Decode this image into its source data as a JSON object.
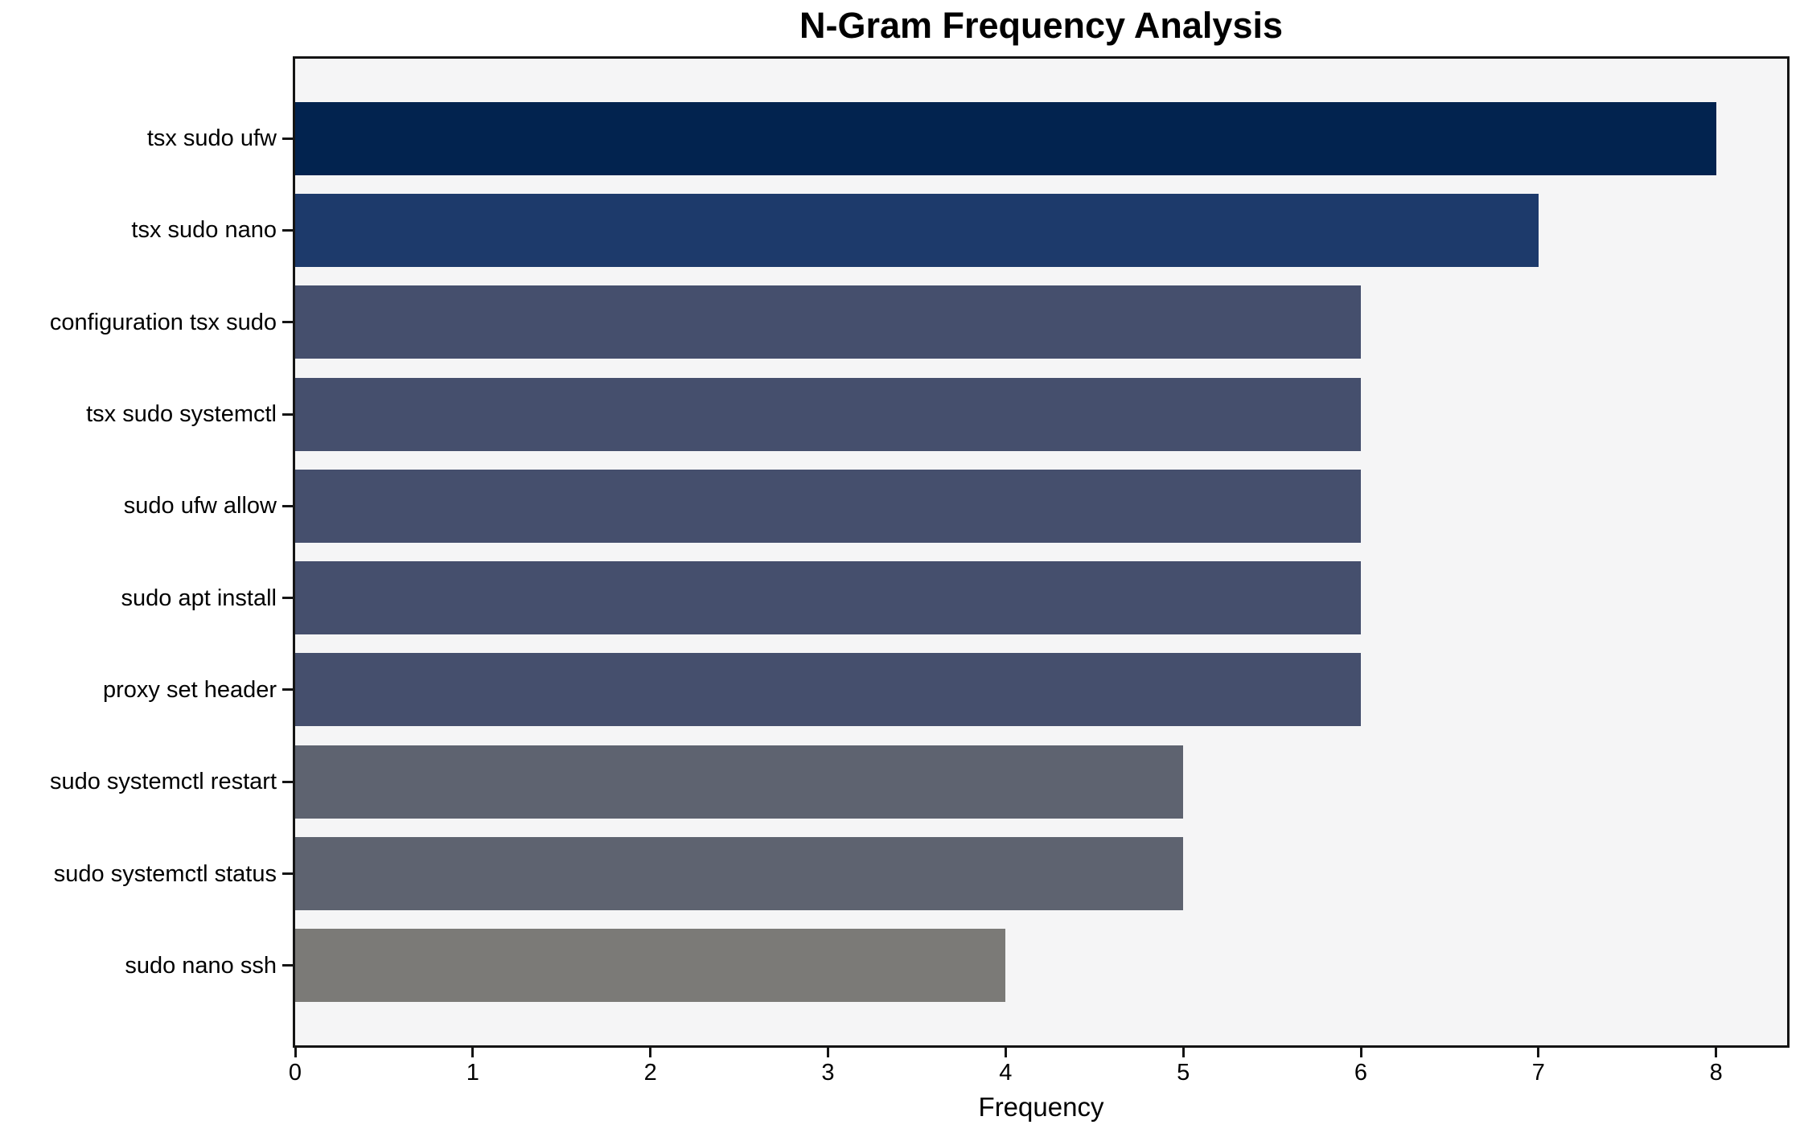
{
  "figure": {
    "background": "#ffffff"
  },
  "chart_data": {
    "type": "bar",
    "orientation": "horizontal",
    "title": "N-Gram Frequency Analysis",
    "xlabel": "Frequency",
    "ylabel": "",
    "categories": [
      "tsx sudo ufw",
      "tsx sudo nano",
      "configuration tsx sudo",
      "tsx sudo systemctl",
      "sudo ufw allow",
      "sudo apt install",
      "proxy set header",
      "sudo systemctl restart",
      "sudo systemctl status",
      "sudo nano ssh"
    ],
    "values": [
      8,
      7,
      6,
      6,
      6,
      6,
      6,
      5,
      5,
      4
    ],
    "bar_colors": [
      "#02234f",
      "#1d3a6b",
      "#454f6d",
      "#454f6d",
      "#454f6d",
      "#454f6d",
      "#454f6d",
      "#5e6370",
      "#5e6370",
      "#7b7a77"
    ],
    "xlim": [
      0,
      8.4
    ],
    "x_ticks": [
      "0",
      "1",
      "2",
      "3",
      "4",
      "5",
      "6",
      "7",
      "8"
    ],
    "x_tick_values": [
      0,
      1,
      2,
      3,
      4,
      5,
      6,
      7,
      8
    ],
    "grid": false,
    "legend": false,
    "plot_background": "#f5f5f6",
    "axis_color": "#141414"
  }
}
